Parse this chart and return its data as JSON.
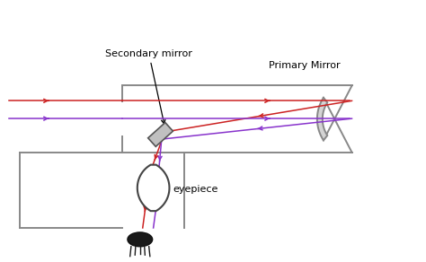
{
  "bg_color": "#ffffff",
  "tube_color": "#888888",
  "red_color": "#cc2222",
  "purple_color": "#8833cc",
  "label_secondary": "Secondary mirror",
  "label_primary": "Primary Mirror",
  "label_eyepiece": "eyepiece"
}
